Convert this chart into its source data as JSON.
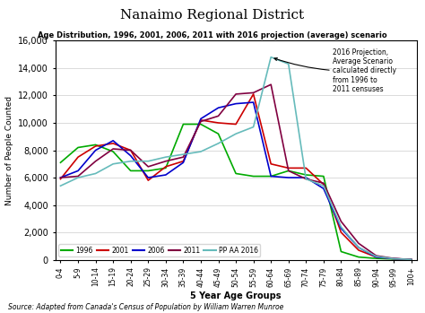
{
  "title": "Nanaimo Regional District",
  "subtitle": "Age Distribution, 1996, 2001, 2006, 2011 with 2016 projection (average) scenario",
  "xlabel": "5 Year Age Groups",
  "ylabel": "Number of People Counted",
  "source": "Source: Adapted from Canada's Census of Population by William Warren Munroe",
  "annotation": "2016 Projection,\nAverage Scenario\ncalculated directly\nfrom 1996 to\n2011 censuses",
  "age_groups": [
    "0-4",
    "5-9",
    "10-14",
    "15-19",
    "20-24",
    "25-29",
    "30-34",
    "35-39",
    "40-44",
    "45-49",
    "50-54",
    "55-59",
    "60-64",
    "65-69",
    "70-74",
    "75-79",
    "80-84",
    "85-89",
    "90-94",
    "95-99",
    "100+"
  ],
  "series": {
    "1996": [
      7100,
      8200,
      8400,
      7900,
      6500,
      6500,
      6700,
      9900,
      9900,
      9200,
      6300,
      6100,
      6100,
      6500,
      6200,
      6100,
      600,
      200,
      100,
      50,
      20
    ],
    "2001": [
      5900,
      7500,
      8300,
      8500,
      8000,
      5800,
      6800,
      7200,
      10200,
      10000,
      9900,
      12100,
      7000,
      6700,
      6700,
      5500,
      2000,
      700,
      200,
      80,
      20
    ],
    "2006": [
      6000,
      6500,
      8000,
      8700,
      7600,
      6000,
      6200,
      7100,
      10300,
      11100,
      11400,
      11500,
      6100,
      6000,
      6000,
      5200,
      2300,
      900,
      200,
      80,
      20
    ],
    "2011": [
      6000,
      6100,
      7200,
      8100,
      8000,
      6800,
      7200,
      7500,
      10100,
      10500,
      12100,
      12200,
      12800,
      6500,
      5900,
      5600,
      2800,
      1200,
      300,
      100,
      20
    ],
    "PP AA 2016": [
      5400,
      6000,
      6300,
      7000,
      7200,
      7200,
      7500,
      7700,
      7900,
      8500,
      9200,
      9700,
      14800,
      14300,
      5900,
      5400,
      2400,
      900,
      250,
      80,
      20
    ]
  },
  "colors": {
    "1996": "#00AA00",
    "2001": "#CC0000",
    "2006": "#0000CC",
    "2011": "#800040",
    "PP AA 2016": "#66BBBB"
  },
  "ylim": [
    0,
    16000
  ],
  "yticks": [
    0,
    2000,
    4000,
    6000,
    8000,
    10000,
    12000,
    14000,
    16000
  ],
  "background_color": "#ffffff"
}
